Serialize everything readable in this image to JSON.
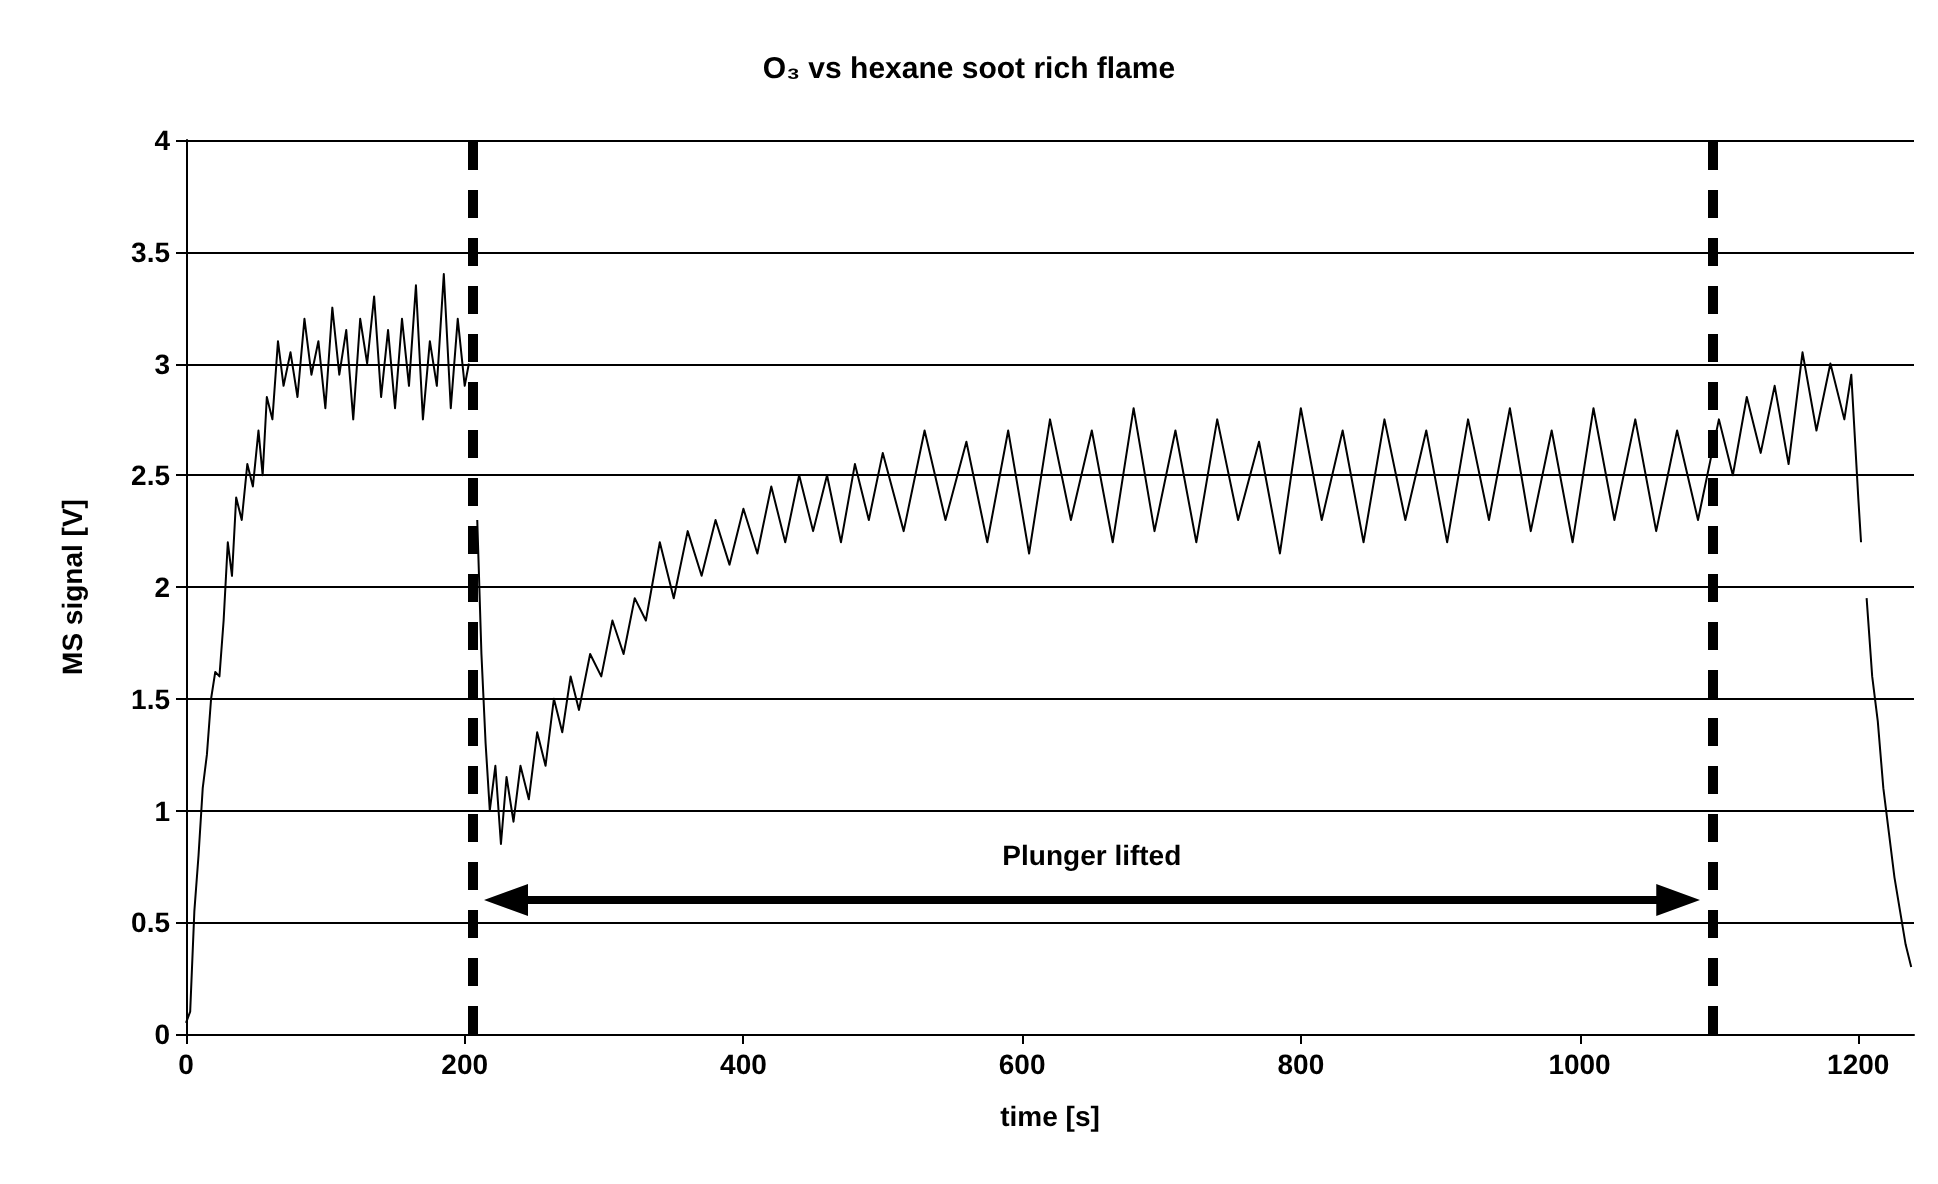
{
  "chart_data": {
    "type": "line",
    "title": "O₃ vs hexane soot rich flame",
    "xlabel": "time [s]",
    "ylabel": "MS signal [V]",
    "xlim": [
      0,
      1240
    ],
    "xticks": [
      0,
      200,
      400,
      600,
      800,
      1000,
      1200
    ],
    "ylim": [
      0,
      4
    ],
    "yticks": [
      0,
      0.5,
      1,
      1.5,
      2,
      2.5,
      3,
      3.5,
      4
    ],
    "grid": "y",
    "marker": "none",
    "line_style": "solid",
    "series": [
      {
        "color": "#000000",
        "x": [
          0,
          3,
          6,
          9,
          12,
          15,
          18,
          21,
          24,
          27,
          30,
          33,
          36,
          40,
          44,
          48,
          52,
          55,
          58,
          62,
          66,
          70,
          75,
          80,
          85,
          90,
          95,
          100,
          105,
          110,
          115,
          120,
          125,
          130,
          135,
          140,
          145,
          150,
          155,
          160,
          165,
          170,
          175,
          180,
          185,
          190,
          195,
          200,
          203,
          206,
          209,
          212,
          215,
          218,
          222,
          226,
          230,
          235,
          240,
          246,
          252,
          258,
          264,
          270,
          276,
          282,
          290,
          298,
          306,
          314,
          322,
          330,
          340,
          350,
          360,
          370,
          380,
          390,
          400,
          410,
          420,
          430,
          440,
          450,
          460,
          470,
          480,
          490,
          500,
          515,
          530,
          545,
          560,
          575,
          590,
          605,
          620,
          635,
          650,
          665,
          680,
          695,
          710,
          725,
          740,
          755,
          770,
          785,
          800,
          815,
          830,
          845,
          860,
          875,
          890,
          905,
          920,
          935,
          950,
          965,
          980,
          995,
          1010,
          1025,
          1040,
          1055,
          1070,
          1085,
          1100,
          1110,
          1120,
          1130,
          1140,
          1150,
          1160,
          1170,
          1180,
          1190,
          1195,
          1200,
          1202,
          1204,
          1206,
          1210,
          1214,
          1218,
          1222,
          1226,
          1230,
          1234,
          1238
        ],
        "values": [
          0.05,
          0.1,
          0.55,
          0.8,
          1.1,
          1.25,
          1.5,
          1.62,
          1.6,
          1.85,
          2.2,
          2.05,
          2.4,
          2.3,
          2.55,
          2.45,
          2.7,
          2.5,
          2.85,
          2.75,
          3.1,
          2.9,
          3.05,
          2.85,
          3.2,
          2.95,
          3.1,
          2.8,
          3.25,
          2.95,
          3.15,
          2.75,
          3.2,
          3.0,
          3.3,
          2.85,
          3.15,
          2.8,
          3.2,
          2.9,
          3.35,
          2.75,
          3.1,
          2.9,
          3.4,
          2.8,
          3.2,
          2.9,
          3.0,
          null,
          2.3,
          1.7,
          1.3,
          1.0,
          1.2,
          0.85,
          1.15,
          0.95,
          1.2,
          1.05,
          1.35,
          1.2,
          1.5,
          1.35,
          1.6,
          1.45,
          1.7,
          1.6,
          1.85,
          1.7,
          1.95,
          1.85,
          2.2,
          1.95,
          2.25,
          2.05,
          2.3,
          2.1,
          2.35,
          2.15,
          2.45,
          2.2,
          2.5,
          2.25,
          2.5,
          2.2,
          2.55,
          2.3,
          2.6,
          2.25,
          2.7,
          2.3,
          2.65,
          2.2,
          2.7,
          2.15,
          2.75,
          2.3,
          2.7,
          2.2,
          2.8,
          2.25,
          2.7,
          2.2,
          2.75,
          2.3,
          2.65,
          2.15,
          2.8,
          2.3,
          2.7,
          2.2,
          2.75,
          2.3,
          2.7,
          2.2,
          2.75,
          2.3,
          2.8,
          2.25,
          2.7,
          2.2,
          2.8,
          2.3,
          2.75,
          2.25,
          2.7,
          2.3,
          2.75,
          2.5,
          2.85,
          2.6,
          2.9,
          2.55,
          3.05,
          2.7,
          3.0,
          2.75,
          2.95,
          2.4,
          2.2,
          null,
          1.95,
          1.6,
          1.4,
          1.1,
          0.9,
          0.7,
          0.55,
          0.4,
          0.3
        ]
      }
    ],
    "ref_lines": [
      {
        "axis": "x",
        "value": 205,
        "color": "#000000",
        "line_style": "dashed"
      },
      {
        "axis": "x",
        "value": 1095,
        "color": "#000000",
        "line_style": "dashed"
      }
    ],
    "annotations": [
      "Plunger lifted"
    ]
  }
}
